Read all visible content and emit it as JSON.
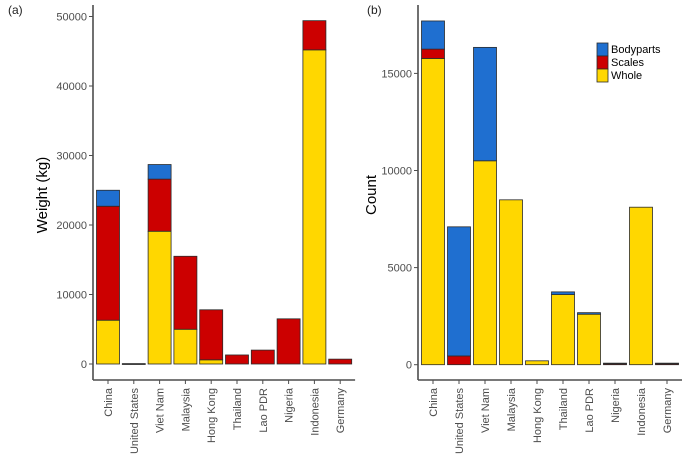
{
  "colors": {
    "Bodyparts": "#1f6fd0",
    "Scales": "#cc0000",
    "Whole": "#ffd700",
    "outline": "#2b2b2b",
    "axis": "#4d4d4d"
  },
  "legend": {
    "items": [
      "Bodyparts",
      "Scales",
      "Whole"
    ],
    "placement": "top-right of panel (b)"
  },
  "chart_data": [
    {
      "type": "bar",
      "stacked": true,
      "panel_label": "(a)",
      "title": "",
      "xlabel": "",
      "ylabel": "Weight (kg)",
      "ylim": [
        0,
        52000
      ],
      "yticks": [
        0,
        10000,
        20000,
        30000,
        40000,
        50000
      ],
      "grid": false,
      "categories": [
        "China",
        "United States",
        "Viet Nam",
        "Malaysia",
        "Hong Kong",
        "Thailand",
        "Lao PDR",
        "Nigeria",
        "Indonesia",
        "Germany"
      ],
      "series": [
        {
          "name": "Whole",
          "values": [
            6300,
            0,
            19100,
            5000,
            600,
            0,
            0,
            0,
            45200,
            0
          ]
        },
        {
          "name": "Scales",
          "values": [
            16400,
            50,
            7500,
            10500,
            7200,
            1300,
            2000,
            6500,
            4200,
            700
          ]
        },
        {
          "name": "Bodyparts",
          "values": [
            2300,
            0,
            2100,
            0,
            0,
            0,
            0,
            0,
            0,
            0
          ]
        }
      ]
    },
    {
      "type": "bar",
      "stacked": true,
      "panel_label": "(b)",
      "title": "",
      "xlabel": "",
      "ylabel": "Count",
      "ylim": [
        0,
        18400
      ],
      "yticks": [
        0,
        5000,
        10000,
        15000
      ],
      "grid": false,
      "legend": "top-right",
      "categories": [
        "China",
        "United States",
        "Viet Nam",
        "Malaysia",
        "Hong Kong",
        "Thailand",
        "Lao PDR",
        "Nigeria",
        "Indonesia",
        "Germany"
      ],
      "series": [
        {
          "name": "Whole",
          "values": [
            15770,
            0,
            10500,
            8490,
            200,
            3610,
            2600,
            0,
            8110,
            0
          ]
        },
        {
          "name": "Scales",
          "values": [
            480,
            450,
            0,
            0,
            0,
            0,
            0,
            60,
            0,
            60
          ]
        },
        {
          "name": "Bodyparts",
          "values": [
            1450,
            6650,
            5840,
            0,
            0,
            140,
            80,
            20,
            0,
            20
          ]
        }
      ]
    }
  ]
}
